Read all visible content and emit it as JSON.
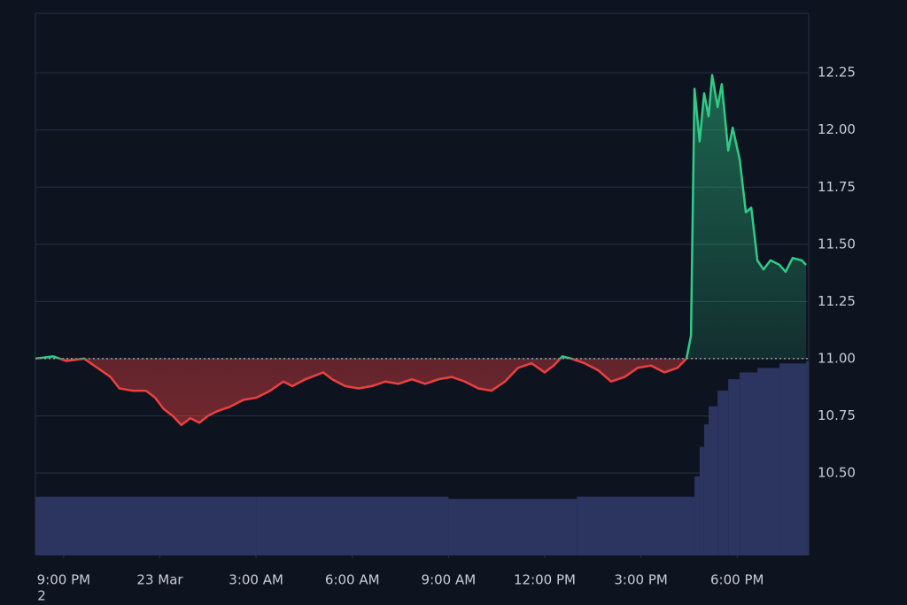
{
  "chart_data": {
    "type": "baseline-line",
    "baseline": 11,
    "color_above": "#2ecc87",
    "color_below": "#ec4040",
    "x": [
      20.12,
      20.67,
      21.08,
      21.64,
      22.05,
      22.46,
      22.74,
      23.15,
      23.57,
      23.85,
      24.12,
      24.4,
      24.67,
      24.95,
      25.23,
      25.5,
      25.78,
      26.19,
      26.61,
      27.02,
      27.44,
      27.85,
      28.13,
      28.54,
      29.09,
      29.37,
      29.78,
      30.2,
      30.61,
      31.03,
      31.44,
      31.86,
      32.27,
      32.69,
      33.1,
      33.51,
      33.93,
      34.34,
      34.76,
      35.17,
      35.59,
      36.0,
      36.28,
      36.55,
      36.83,
      37.24,
      37.66,
      38.07,
      38.49,
      38.9,
      39.31,
      39.73,
      40.14,
      40.42,
      40.56,
      40.67,
      40.83,
      40.97,
      41.11,
      41.22,
      41.39,
      41.52,
      41.72,
      41.86,
      42.08,
      42.27,
      42.44,
      42.63,
      42.82,
      43.04,
      43.32,
      43.51,
      43.73,
      44.01,
      44.15
    ],
    "values": [
      11.0,
      11.01,
      10.99,
      11.0,
      10.96,
      10.92,
      10.87,
      10.86,
      10.86,
      10.83,
      10.78,
      10.75,
      10.71,
      10.74,
      10.72,
      10.75,
      10.77,
      10.79,
      10.82,
      10.83,
      10.86,
      10.9,
      10.88,
      10.91,
      10.94,
      10.91,
      10.88,
      10.87,
      10.88,
      10.9,
      10.89,
      10.91,
      10.89,
      10.91,
      10.92,
      10.9,
      10.87,
      10.86,
      10.9,
      10.96,
      10.98,
      10.94,
      10.97,
      11.01,
      11.0,
      10.98,
      10.95,
      10.9,
      10.92,
      10.96,
      10.97,
      10.94,
      10.96,
      11.0,
      11.1,
      12.18,
      11.95,
      12.16,
      12.06,
      12.24,
      12.1,
      12.2,
      11.91,
      12.01,
      11.87,
      11.64,
      11.66,
      11.43,
      11.39,
      11.43,
      11.41,
      11.38,
      11.44,
      11.43,
      11.41
    ],
    "volume": {
      "color": "#2b3560",
      "ylim": [
        0,
        240
      ],
      "x": [
        20.12,
        27.0,
        33.0,
        37.0,
        40.56,
        40.67,
        40.83,
        40.97,
        41.11,
        41.39,
        41.72,
        42.08,
        42.63,
        43.32,
        44.15
      ],
      "values": [
        26,
        26,
        25,
        26,
        26,
        35,
        48,
        58,
        66,
        73,
        78,
        81,
        83,
        85,
        86
      ]
    },
    "xlim": [
      20.12,
      44.23
    ],
    "ylim": [
      10.14,
      12.51
    ],
    "xticks": [
      {
        "value": 21,
        "label": "9:00 PM"
      },
      {
        "value": 24,
        "label": "23 Mar"
      },
      {
        "value": 27,
        "label": "3:00 AM"
      },
      {
        "value": 30,
        "label": "6:00 AM"
      },
      {
        "value": 33,
        "label": "9:00 AM"
      },
      {
        "value": 36,
        "label": "12:00 PM"
      },
      {
        "value": 39,
        "label": "3:00 PM"
      },
      {
        "value": 42,
        "label": "6:00 PM"
      }
    ],
    "yticks": [
      {
        "value": 10.5,
        "label": "10.50"
      },
      10.75,
      {
        "value": 11,
        "label": "11.00"
      },
      11.25,
      {
        "value": 11.5,
        "label": "11.50"
      },
      11.75,
      {
        "value": 12,
        "label": "12.00"
      },
      12.25
    ],
    "grid": true,
    "corner_text": "2"
  }
}
